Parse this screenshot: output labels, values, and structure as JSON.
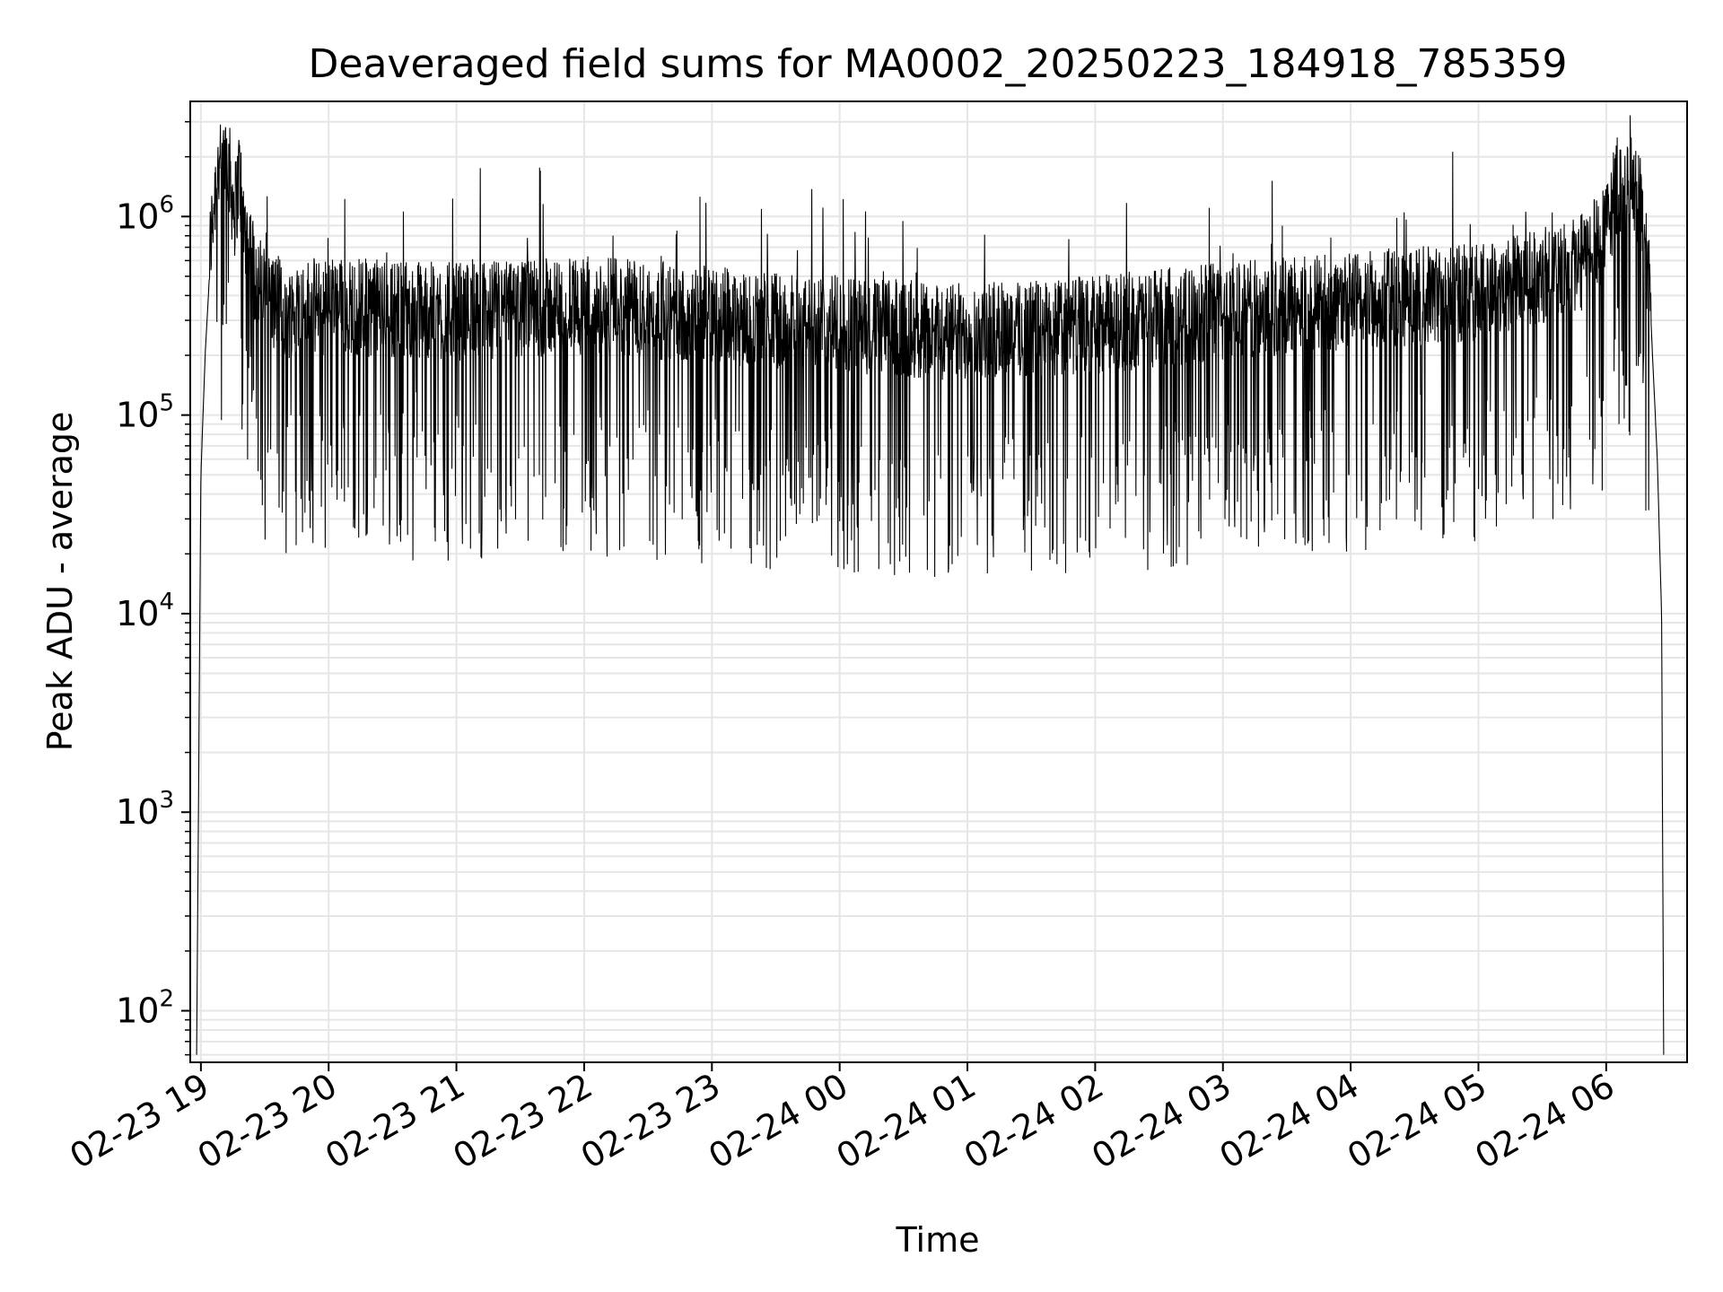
{
  "chart_data": {
    "type": "line",
    "title": "Deaveraged field sums for MA0002_20250223_184918_785359",
    "xlabel": "Time",
    "ylabel": "Peak ADU - average",
    "y_scale": "log",
    "ylim": [
      55,
      3800000
    ],
    "xlim": [
      "2025-02-23 18:55",
      "2025-02-24 06:38"
    ],
    "grid": true,
    "x_ticks": [
      {
        "t": "2025-02-23 19:00",
        "label": "02-23 19"
      },
      {
        "t": "2025-02-23 20:00",
        "label": "02-23 20"
      },
      {
        "t": "2025-02-23 21:00",
        "label": "02-23 21"
      },
      {
        "t": "2025-02-23 22:00",
        "label": "02-23 22"
      },
      {
        "t": "2025-02-23 23:00",
        "label": "02-23 23"
      },
      {
        "t": "2025-02-24 00:00",
        "label": "02-24 00"
      },
      {
        "t": "2025-02-24 01:00",
        "label": "02-24 01"
      },
      {
        "t": "2025-02-24 02:00",
        "label": "02-24 02"
      },
      {
        "t": "2025-02-24 03:00",
        "label": "02-24 03"
      },
      {
        "t": "2025-02-24 04:00",
        "label": "02-24 04"
      },
      {
        "t": "2025-02-24 05:00",
        "label": "02-24 05"
      },
      {
        "t": "2025-02-24 06:00",
        "label": "02-24 06"
      }
    ],
    "y_ticks": [
      {
        "value": 100,
        "base": "10",
        "exp": "2"
      },
      {
        "value": 1000,
        "base": "10",
        "exp": "3"
      },
      {
        "value": 10000,
        "base": "10",
        "exp": "4"
      },
      {
        "value": 100000,
        "base": "10",
        "exp": "5"
      },
      {
        "value": 1000000,
        "base": "10",
        "exp": "6"
      }
    ],
    "series": [
      {
        "color": "#000000",
        "points": [
          [
            "2025-02-23 18:58",
            60
          ],
          [
            "2025-02-23 19:00",
            50000
          ],
          [
            "2025-02-23 19:02",
            200000
          ],
          [
            "2025-02-23 19:04",
            500000
          ],
          [
            "2025-02-23 19:06",
            1000000
          ],
          [
            "2025-02-23 19:08",
            1500000
          ],
          [
            "2025-02-23 19:10",
            1300000
          ],
          [
            "2025-02-23 19:12",
            2100000
          ],
          [
            "2025-02-23 19:14",
            1200000
          ],
          [
            "2025-02-23 19:16",
            900000
          ],
          [
            "2025-02-23 19:18",
            1400000
          ],
          [
            "2025-02-23 19:20",
            800000
          ],
          [
            "2025-02-23 19:23",
            600000
          ],
          [
            "2025-02-23 19:26",
            400000
          ],
          [
            "2025-02-23 19:30",
            350000
          ],
          [
            "2025-02-23 19:40",
            280000
          ],
          [
            "2025-02-23 20:00",
            300000
          ],
          [
            "2025-02-23 21:00",
            280000
          ],
          [
            "2025-02-23 22:00",
            300000
          ],
          [
            "2025-02-23 23:00",
            270000
          ],
          [
            "2025-02-24 00:00",
            240000
          ],
          [
            "2025-02-24 01:00",
            220000
          ],
          [
            "2025-02-24 02:00",
            240000
          ],
          [
            "2025-02-24 03:00",
            280000
          ],
          [
            "2025-02-24 04:00",
            320000
          ],
          [
            "2025-02-24 05:00",
            350000
          ],
          [
            "2025-02-24 05:50",
            500000
          ],
          [
            "2025-02-24 06:00",
            700000
          ],
          [
            "2025-02-24 06:05",
            1200000
          ],
          [
            "2025-02-24 06:10",
            1300000
          ],
          [
            "2025-02-24 06:15",
            1000000
          ],
          [
            "2025-02-24 06:18",
            600000
          ],
          [
            "2025-02-24 06:21",
            300000
          ],
          [
            "2025-02-24 06:24",
            60000
          ],
          [
            "2025-02-24 06:26",
            10000
          ],
          [
            "2025-02-24 06:27",
            60
          ]
        ]
      }
    ]
  }
}
